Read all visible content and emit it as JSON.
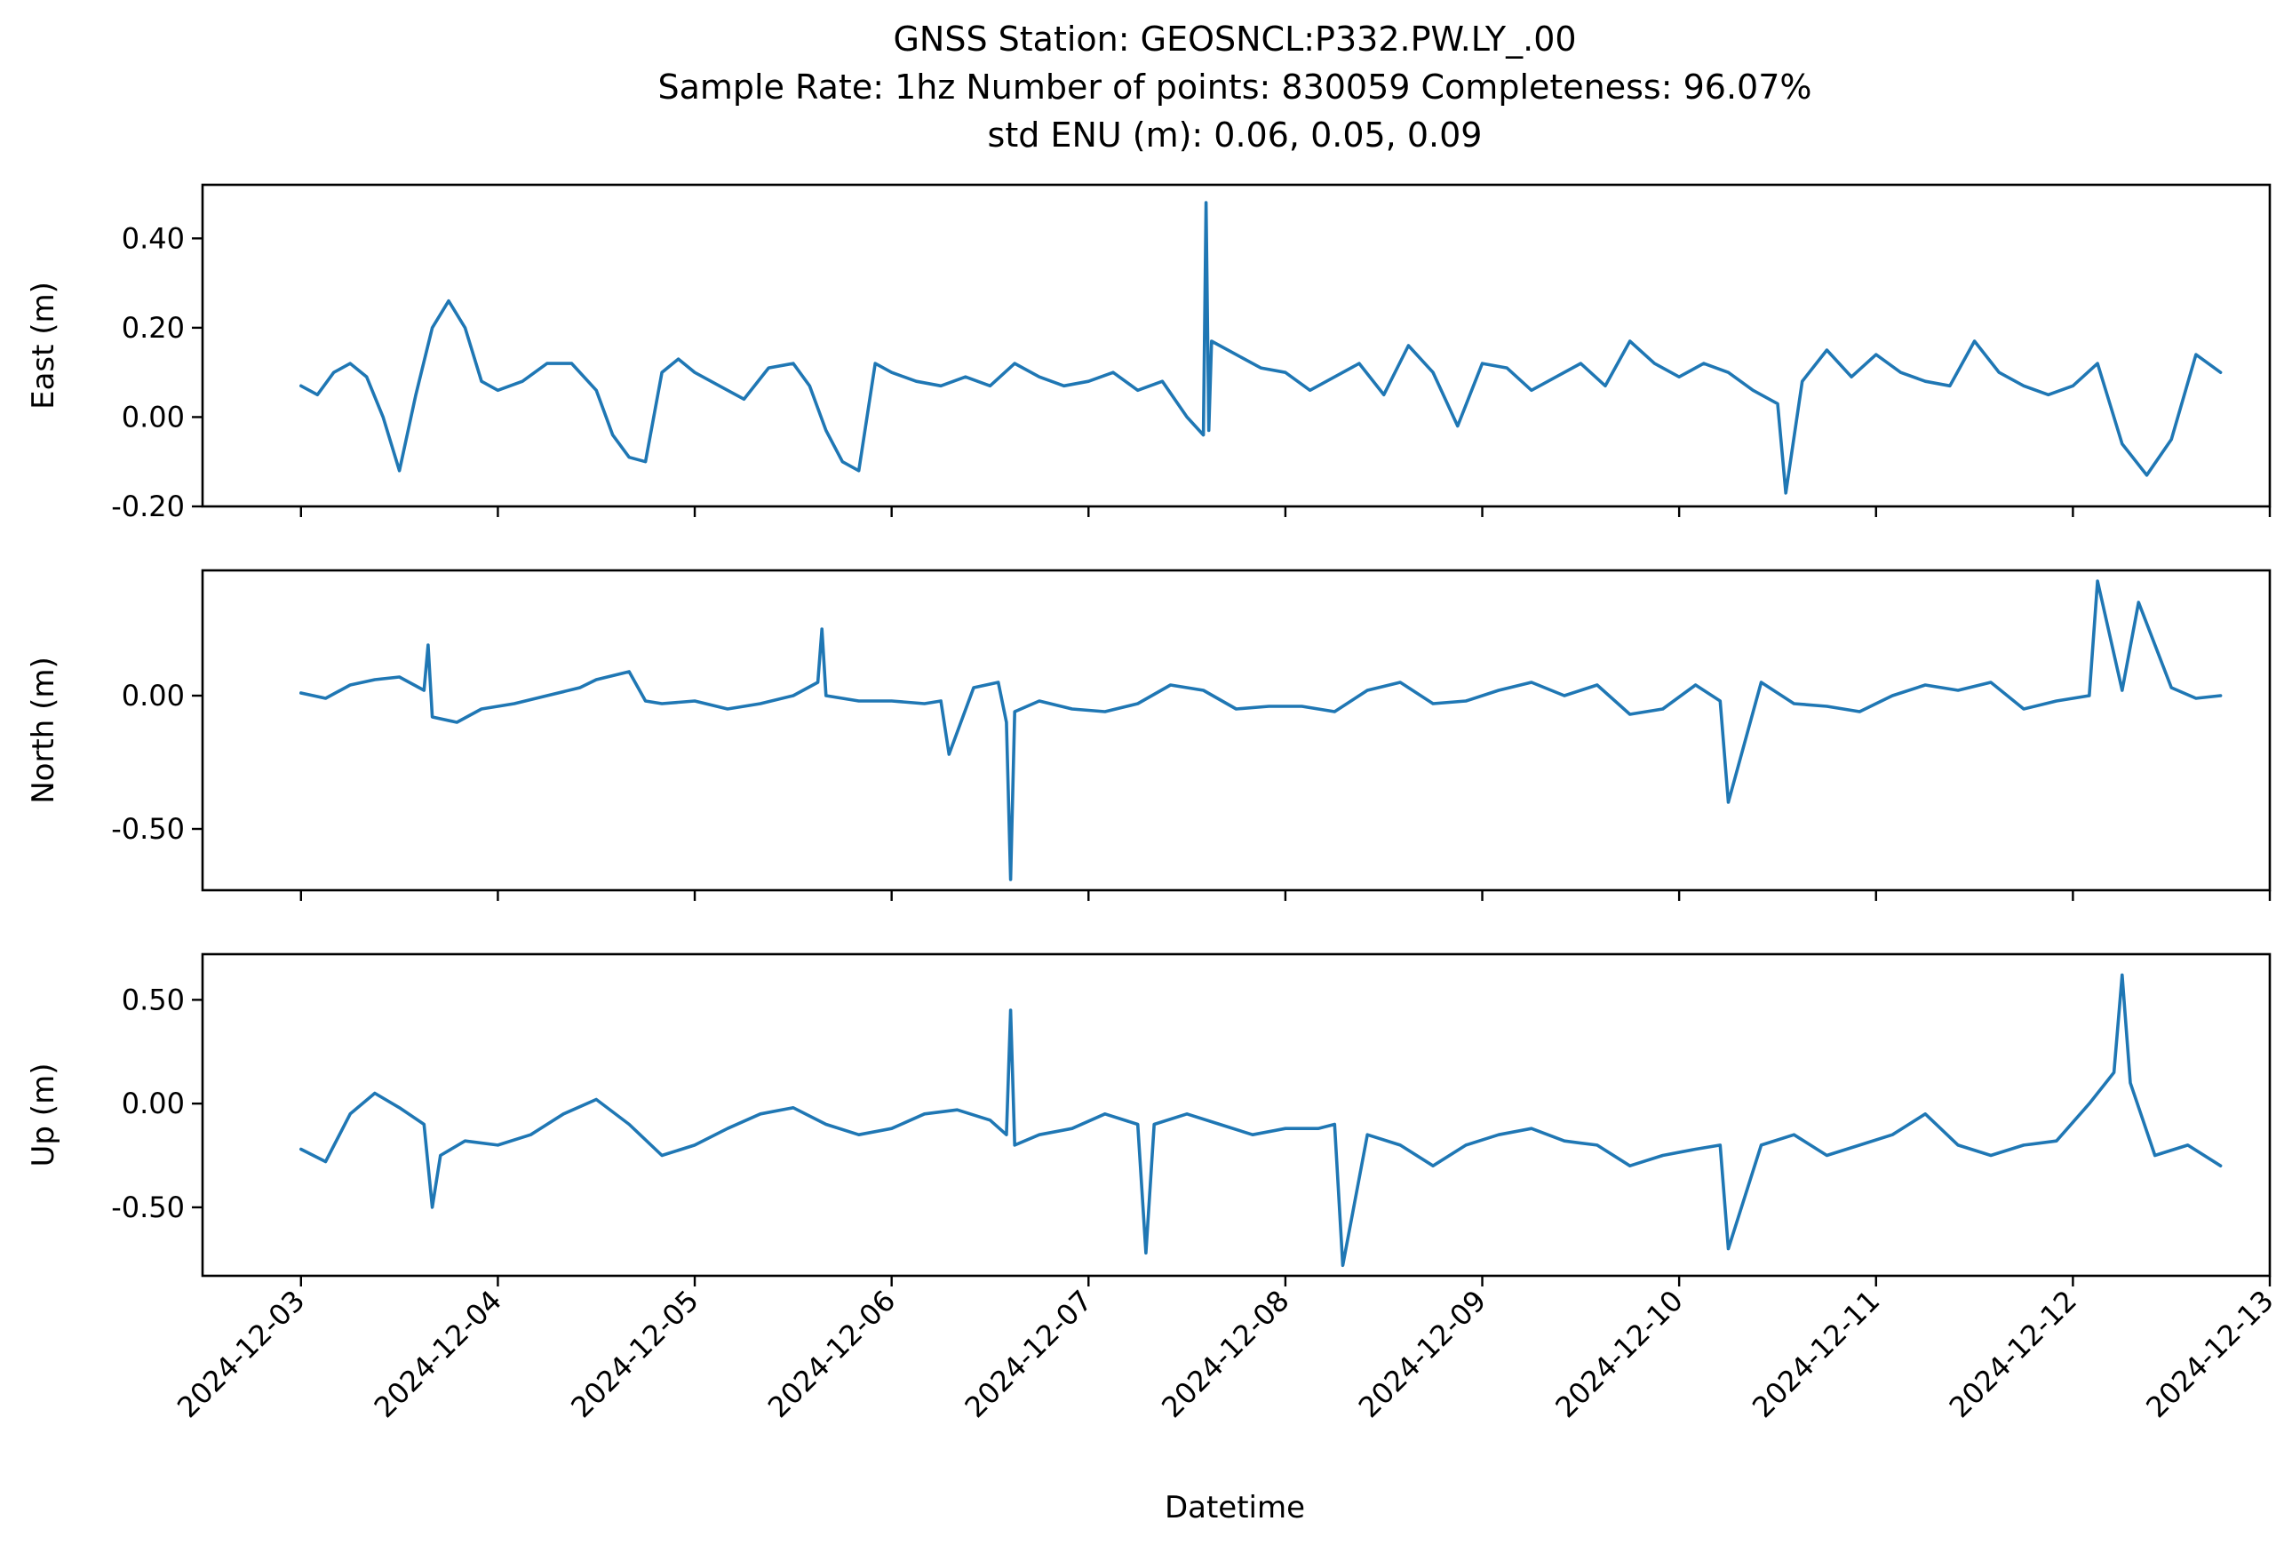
{
  "figure": {
    "title_lines": [
      "GNSS Station: GEOSNCL:P332.PW.LY_.00",
      "Sample Rate: 1hz   Number of points: 830059    Completeness:  96.07%",
      "std ENU (m):  0.06, 0.05, 0.09"
    ],
    "xlabel": "Datetime",
    "series_color": "#1f77b4"
  },
  "chart_data": [
    {
      "type": "line",
      "ylabel": "East (m)",
      "xlim": [
        "2024-12-02 12:00",
        "2024-12-13 00:00"
      ],
      "ylim": [
        -0.2,
        0.52
      ],
      "yticks": [
        0.4,
        0.2,
        0.0,
        -0.2
      ],
      "ytick_labels": [
        "0.40",
        "0.20",
        "0.00",
        "-0.20"
      ],
      "xticks": [
        "2024-12-03",
        "2024-12-04",
        "2024-12-05",
        "2024-12-06",
        "2024-12-07",
        "2024-12-08",
        "2024-12-09",
        "2024-12-10",
        "2024-12-11",
        "2024-12-12",
        "2024-12-13"
      ],
      "xtick_labels_shown": false,
      "series": [
        {
          "x": [
            "2024-12-03 00:00",
            "2024-12-03 02:00",
            "2024-12-03 04:00",
            "2024-12-03 06:00",
            "2024-12-03 08:00",
            "2024-12-03 10:00",
            "2024-12-03 12:00",
            "2024-12-03 14:00",
            "2024-12-03 16:00",
            "2024-12-03 18:00",
            "2024-12-03 20:00",
            "2024-12-03 22:00",
            "2024-12-04 00:00",
            "2024-12-04 03:00",
            "2024-12-04 06:00",
            "2024-12-04 09:00",
            "2024-12-04 12:00",
            "2024-12-04 14:00",
            "2024-12-04 16:00",
            "2024-12-04 18:00",
            "2024-12-04 20:00",
            "2024-12-04 22:00",
            "2024-12-05 00:00",
            "2024-12-05 03:00",
            "2024-12-05 06:00",
            "2024-12-05 09:00",
            "2024-12-05 12:00",
            "2024-12-05 14:00",
            "2024-12-05 16:00",
            "2024-12-05 18:00",
            "2024-12-05 20:00",
            "2024-12-05 22:00",
            "2024-12-06 00:00",
            "2024-12-06 03:00",
            "2024-12-06 06:00",
            "2024-12-06 09:00",
            "2024-12-06 12:00",
            "2024-12-06 15:00",
            "2024-12-06 18:00",
            "2024-12-06 21:00",
            "2024-12-07 00:00",
            "2024-12-07 03:00",
            "2024-12-07 06:00",
            "2024-12-07 09:00",
            "2024-12-07 12:00",
            "2024-12-07 14:00",
            "2024-12-07 14:20",
            "2024-12-07 14:40",
            "2024-12-07 15:00",
            "2024-12-07 18:00",
            "2024-12-07 21:00",
            "2024-12-08 00:00",
            "2024-12-08 03:00",
            "2024-12-08 06:00",
            "2024-12-08 09:00",
            "2024-12-08 12:00",
            "2024-12-08 15:00",
            "2024-12-08 18:00",
            "2024-12-08 21:00",
            "2024-12-09 00:00",
            "2024-12-09 03:00",
            "2024-12-09 06:00",
            "2024-12-09 09:00",
            "2024-12-09 12:00",
            "2024-12-09 15:00",
            "2024-12-09 18:00",
            "2024-12-09 21:00",
            "2024-12-10 00:00",
            "2024-12-10 03:00",
            "2024-12-10 06:00",
            "2024-12-10 09:00",
            "2024-12-10 12:00",
            "2024-12-10 13:00",
            "2024-12-10 15:00",
            "2024-12-10 18:00",
            "2024-12-10 21:00",
            "2024-12-11 00:00",
            "2024-12-11 03:00",
            "2024-12-11 06:00",
            "2024-12-11 09:00",
            "2024-12-11 12:00",
            "2024-12-11 15:00",
            "2024-12-11 18:00",
            "2024-12-11 21:00",
            "2024-12-12 00:00",
            "2024-12-12 03:00",
            "2024-12-12 06:00",
            "2024-12-12 09:00",
            "2024-12-12 12:00",
            "2024-12-12 15:00",
            "2024-12-12 18:00"
          ],
          "y": [
            0.07,
            0.05,
            0.1,
            0.12,
            0.09,
            0.0,
            -0.12,
            0.05,
            0.2,
            0.26,
            0.2,
            0.08,
            0.06,
            0.08,
            0.12,
            0.12,
            0.06,
            -0.04,
            -0.09,
            -0.1,
            0.1,
            0.13,
            0.1,
            0.07,
            0.04,
            0.11,
            0.12,
            0.07,
            -0.03,
            -0.1,
            -0.12,
            0.12,
            0.1,
            0.08,
            0.07,
            0.09,
            0.07,
            0.12,
            0.09,
            0.07,
            0.08,
            0.1,
            0.06,
            0.08,
            0.0,
            -0.04,
            0.48,
            -0.03,
            0.17,
            0.14,
            0.11,
            0.1,
            0.06,
            0.09,
            0.12,
            0.05,
            0.16,
            0.1,
            -0.02,
            0.12,
            0.11,
            0.06,
            0.09,
            0.12,
            0.07,
            0.17,
            0.12,
            0.09,
            0.12,
            0.1,
            0.06,
            0.03,
            -0.17,
            0.08,
            0.15,
            0.09,
            0.14,
            0.1,
            0.08,
            0.07,
            0.17,
            0.1,
            0.07,
            0.05,
            0.07,
            0.12,
            -0.06,
            -0.13,
            -0.05,
            0.14,
            0.1
          ]
        }
      ]
    },
    {
      "type": "line",
      "ylabel": "North (m)",
      "xlim": [
        "2024-12-02 12:00",
        "2024-12-13 00:00"
      ],
      "ylim": [
        -0.73,
        0.47
      ],
      "yticks": [
        0.0,
        -0.5
      ],
      "ytick_labels": [
        "0.00",
        "-0.50"
      ],
      "xticks": [
        "2024-12-03",
        "2024-12-04",
        "2024-12-05",
        "2024-12-06",
        "2024-12-07",
        "2024-12-08",
        "2024-12-09",
        "2024-12-10",
        "2024-12-11",
        "2024-12-12",
        "2024-12-13"
      ],
      "xtick_labels_shown": false,
      "series": [
        {
          "x": [
            "2024-12-03 00:00",
            "2024-12-03 03:00",
            "2024-12-03 06:00",
            "2024-12-03 09:00",
            "2024-12-03 12:00",
            "2024-12-03 15:00",
            "2024-12-03 15:30",
            "2024-12-03 16:00",
            "2024-12-03 19:00",
            "2024-12-03 22:00",
            "2024-12-04 02:00",
            "2024-12-04 06:00",
            "2024-12-04 10:00",
            "2024-12-04 12:00",
            "2024-12-04 16:00",
            "2024-12-04 18:00",
            "2024-12-04 20:00",
            "2024-12-05 00:00",
            "2024-12-05 04:00",
            "2024-12-05 08:00",
            "2024-12-05 12:00",
            "2024-12-05 15:00",
            "2024-12-05 15:30",
            "2024-12-05 16:00",
            "2024-12-05 20:00",
            "2024-12-06 00:00",
            "2024-12-06 04:00",
            "2024-12-06 06:00",
            "2024-12-06 07:00",
            "2024-12-06 10:00",
            "2024-12-06 13:00",
            "2024-12-06 14:00",
            "2024-12-06 14:30",
            "2024-12-06 15:00",
            "2024-12-06 18:00",
            "2024-12-06 22:00",
            "2024-12-07 02:00",
            "2024-12-07 06:00",
            "2024-12-07 10:00",
            "2024-12-07 14:00",
            "2024-12-07 18:00",
            "2024-12-07 22:00",
            "2024-12-08 02:00",
            "2024-12-08 06:00",
            "2024-12-08 10:00",
            "2024-12-08 14:00",
            "2024-12-08 18:00",
            "2024-12-08 22:00",
            "2024-12-09 02:00",
            "2024-12-09 06:00",
            "2024-12-09 10:00",
            "2024-12-09 14:00",
            "2024-12-09 18:00",
            "2024-12-09 22:00",
            "2024-12-10 02:00",
            "2024-12-10 05:00",
            "2024-12-10 06:00",
            "2024-12-10 10:00",
            "2024-12-10 14:00",
            "2024-12-10 18:00",
            "2024-12-10 22:00",
            "2024-12-11 02:00",
            "2024-12-11 06:00",
            "2024-12-11 10:00",
            "2024-12-11 14:00",
            "2024-12-11 18:00",
            "2024-12-11 22:00",
            "2024-12-12 02:00",
            "2024-12-12 03:00",
            "2024-12-12 06:00",
            "2024-12-12 08:00",
            "2024-12-12 12:00",
            "2024-12-12 15:00",
            "2024-12-12 18:00"
          ],
          "y": [
            0.01,
            -0.01,
            0.04,
            0.06,
            0.07,
            0.02,
            0.19,
            -0.08,
            -0.1,
            -0.05,
            -0.03,
            0.0,
            0.03,
            0.06,
            0.09,
            -0.02,
            -0.03,
            -0.02,
            -0.05,
            -0.03,
            0.0,
            0.05,
            0.25,
            0.0,
            -0.02,
            -0.02,
            -0.03,
            -0.02,
            -0.22,
            0.03,
            0.05,
            -0.1,
            -0.69,
            -0.06,
            -0.02,
            -0.05,
            -0.06,
            -0.03,
            0.04,
            0.02,
            -0.05,
            -0.04,
            -0.04,
            -0.06,
            0.02,
            0.05,
            -0.03,
            -0.02,
            0.02,
            0.05,
            0.0,
            0.04,
            -0.07,
            -0.05,
            0.04,
            -0.02,
            -0.4,
            0.05,
            -0.03,
            -0.04,
            -0.06,
            0.0,
            0.04,
            0.02,
            0.05,
            -0.05,
            -0.02,
            0.0,
            0.43,
            0.02,
            0.35,
            0.03,
            -0.01,
            0.0
          ]
        }
      ]
    },
    {
      "type": "line",
      "ylabel": "Up (m)",
      "xlim": [
        "2024-12-02 12:00",
        "2024-12-13 00:00"
      ],
      "ylim": [
        -0.83,
        0.72
      ],
      "yticks": [
        0.5,
        0.0,
        -0.5
      ],
      "ytick_labels": [
        "0.50",
        "0.00",
        "-0.50"
      ],
      "xticks": [
        "2024-12-03",
        "2024-12-04",
        "2024-12-05",
        "2024-12-06",
        "2024-12-07",
        "2024-12-08",
        "2024-12-09",
        "2024-12-10",
        "2024-12-11",
        "2024-12-12",
        "2024-12-13"
      ],
      "xtick_labels_shown": true,
      "series": [
        {
          "x": [
            "2024-12-03 00:00",
            "2024-12-03 03:00",
            "2024-12-03 06:00",
            "2024-12-03 09:00",
            "2024-12-03 12:00",
            "2024-12-03 15:00",
            "2024-12-03 16:00",
            "2024-12-03 17:00",
            "2024-12-03 20:00",
            "2024-12-04 00:00",
            "2024-12-04 04:00",
            "2024-12-04 08:00",
            "2024-12-04 12:00",
            "2024-12-04 16:00",
            "2024-12-04 20:00",
            "2024-12-05 00:00",
            "2024-12-05 04:00",
            "2024-12-05 08:00",
            "2024-12-05 12:00",
            "2024-12-05 16:00",
            "2024-12-05 20:00",
            "2024-12-06 00:00",
            "2024-12-06 04:00",
            "2024-12-06 08:00",
            "2024-12-06 12:00",
            "2024-12-06 14:00",
            "2024-12-06 14:30",
            "2024-12-06 15:00",
            "2024-12-06 18:00",
            "2024-12-06 22:00",
            "2024-12-07 02:00",
            "2024-12-07 06:00",
            "2024-12-07 07:00",
            "2024-12-07 08:00",
            "2024-12-07 12:00",
            "2024-12-07 16:00",
            "2024-12-07 20:00",
            "2024-12-08 00:00",
            "2024-12-08 04:00",
            "2024-12-08 06:00",
            "2024-12-08 07:00",
            "2024-12-08 10:00",
            "2024-12-08 14:00",
            "2024-12-08 18:00",
            "2024-12-08 22:00",
            "2024-12-09 02:00",
            "2024-12-09 06:00",
            "2024-12-09 10:00",
            "2024-12-09 14:00",
            "2024-12-09 18:00",
            "2024-12-09 22:00",
            "2024-12-10 02:00",
            "2024-12-10 05:00",
            "2024-12-10 06:00",
            "2024-12-10 10:00",
            "2024-12-10 14:00",
            "2024-12-10 18:00",
            "2024-12-10 22:00",
            "2024-12-11 02:00",
            "2024-12-11 06:00",
            "2024-12-11 10:00",
            "2024-12-11 14:00",
            "2024-12-11 18:00",
            "2024-12-11 22:00",
            "2024-12-12 02:00",
            "2024-12-12 05:00",
            "2024-12-12 06:00",
            "2024-12-12 07:00",
            "2024-12-12 10:00",
            "2024-12-12 14:00",
            "2024-12-12 18:00"
          ],
          "y": [
            -0.22,
            -0.28,
            -0.05,
            0.05,
            -0.02,
            -0.1,
            -0.5,
            -0.25,
            -0.18,
            -0.2,
            -0.15,
            -0.05,
            0.02,
            -0.1,
            -0.25,
            -0.2,
            -0.12,
            -0.05,
            -0.02,
            -0.1,
            -0.15,
            -0.12,
            -0.05,
            -0.03,
            -0.08,
            -0.15,
            0.45,
            -0.2,
            -0.15,
            -0.12,
            -0.05,
            -0.1,
            -0.72,
            -0.1,
            -0.05,
            -0.1,
            -0.15,
            -0.12,
            -0.12,
            -0.1,
            -0.78,
            -0.15,
            -0.2,
            -0.3,
            -0.2,
            -0.15,
            -0.12,
            -0.18,
            -0.2,
            -0.3,
            -0.25,
            -0.22,
            -0.2,
            -0.7,
            -0.2,
            -0.15,
            -0.25,
            -0.2,
            -0.15,
            -0.05,
            -0.2,
            -0.25,
            -0.2,
            -0.18,
            0.0,
            0.15,
            0.62,
            0.1,
            -0.25,
            -0.2,
            -0.3
          ]
        }
      ]
    }
  ]
}
